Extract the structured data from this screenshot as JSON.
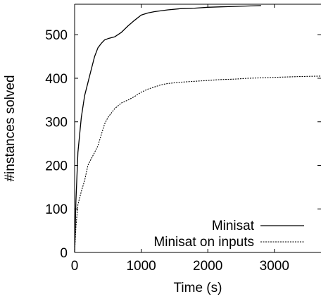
{
  "chart_data": {
    "type": "line",
    "title": "",
    "xlabel": "Time (s)",
    "ylabel": "#instances solved",
    "xlim": [
      0,
      3700
    ],
    "ylim": [
      0,
      570
    ],
    "xticks": [
      0,
      1000,
      2000,
      3000
    ],
    "yticks": [
      0,
      100,
      200,
      300,
      400,
      500
    ],
    "grid": false,
    "legend": "bottom-right",
    "series": [
      {
        "name": "Minisat",
        "style": "solid",
        "color": "#000000",
        "x": [
          0,
          20,
          50,
          100,
          150,
          200,
          250,
          300,
          350,
          400,
          450,
          500,
          600,
          700,
          800,
          900,
          1000,
          1100,
          1200,
          1400,
          1600,
          1800,
          2000,
          2200,
          2400,
          2600,
          2800
        ],
        "y": [
          0,
          120,
          230,
          310,
          360,
          390,
          420,
          450,
          470,
          480,
          488,
          491,
          495,
          505,
          520,
          533,
          545,
          550,
          553,
          557,
          560,
          561,
          563,
          564,
          565,
          566,
          567
        ]
      },
      {
        "name": "Minisat on inputs",
        "style": "dashed",
        "color": "#000000",
        "x": [
          0,
          20,
          50,
          100,
          150,
          200,
          250,
          300,
          350,
          400,
          450,
          500,
          600,
          700,
          800,
          900,
          1000,
          1100,
          1200,
          1300,
          1400,
          1600,
          1800,
          2000,
          2200,
          2400,
          2600,
          2800,
          3000,
          3200,
          3400,
          3700
        ],
        "y": [
          0,
          60,
          110,
          140,
          165,
          200,
          215,
          230,
          245,
          270,
          295,
          310,
          330,
          343,
          350,
          358,
          368,
          375,
          380,
          385,
          388,
          391,
          393,
          395,
          397,
          398,
          400,
          401,
          402,
          403,
          404,
          405
        ]
      }
    ]
  }
}
